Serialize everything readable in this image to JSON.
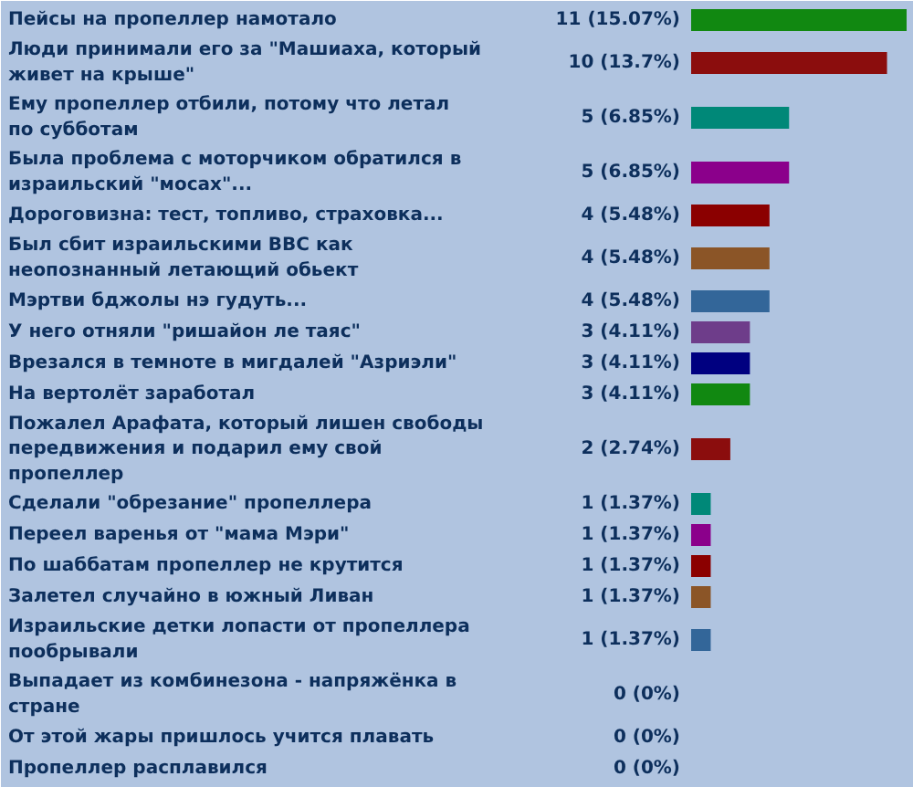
{
  "chart_data": {
    "type": "bar",
    "orientation": "horizontal",
    "categories": [
      "Пейсы на пропеллер намотало",
      "Люди принимали его за \"Машиаха, который живет на крыше\"",
      "Ему пропеллер отбили, потому что летал по субботам",
      "Была проблема с моторчиком обратился в израильский \"мосах\"...",
      "Дороговизна: тест, топливо, страховка...",
      "Был сбит израильскими ВВС как неопознанный летающий обьект",
      "Мэртви бджолы нэ гудуть...",
      "У него отняли \"ришайон ле таяс\"",
      "Врезался в темноте в мигдалей \"Азриэли\"",
      "На вертолёт заработал",
      "Пожалел Арафата, который лишен свободы передвижения и подарил ему свой пропеллер",
      "Сделали \"обрезание\" пропеллера",
      "Переел варенья от \"мама Мэри\"",
      "По шаббатам пропеллер не крутится",
      "Залетел случайно в южный Ливан",
      "Израильские детки лопасти от пропеллера пообрывали",
      "Выпадает из комбинезона - напряжёнка в стране",
      "От этой жары пришлось учится плавать",
      "Пропеллер расплавился"
    ],
    "values": [
      11,
      10,
      5,
      5,
      4,
      4,
      4,
      3,
      3,
      3,
      2,
      1,
      1,
      1,
      1,
      1,
      0,
      0,
      0
    ],
    "value_labels": [
      "11 (15.07%)",
      "10 (13.7%)",
      "5 (6.85%)",
      "5 (6.85%)",
      "4 (5.48%)",
      "4 (5.48%)",
      "4 (5.48%)",
      "3 (4.11%)",
      "3 (4.11%)",
      "3 (4.11%)",
      "2 (2.74%)",
      "1 (1.37%)",
      "1 (1.37%)",
      "1 (1.37%)",
      "1 (1.37%)",
      "1 (1.37%)",
      "0 (0%)",
      "0 (0%)",
      "0 (0%)"
    ],
    "colors": [
      "#118811",
      "#8b0d0d",
      "#008878",
      "#8b008b",
      "#8b0000",
      "#8b5527",
      "#336699",
      "#6e3d8a",
      "#000080",
      "#118811",
      "#8b0d0d",
      "#008878",
      "#8b008b",
      "#8b0000",
      "#8b5527",
      "#336699",
      null,
      null,
      null
    ]
  }
}
